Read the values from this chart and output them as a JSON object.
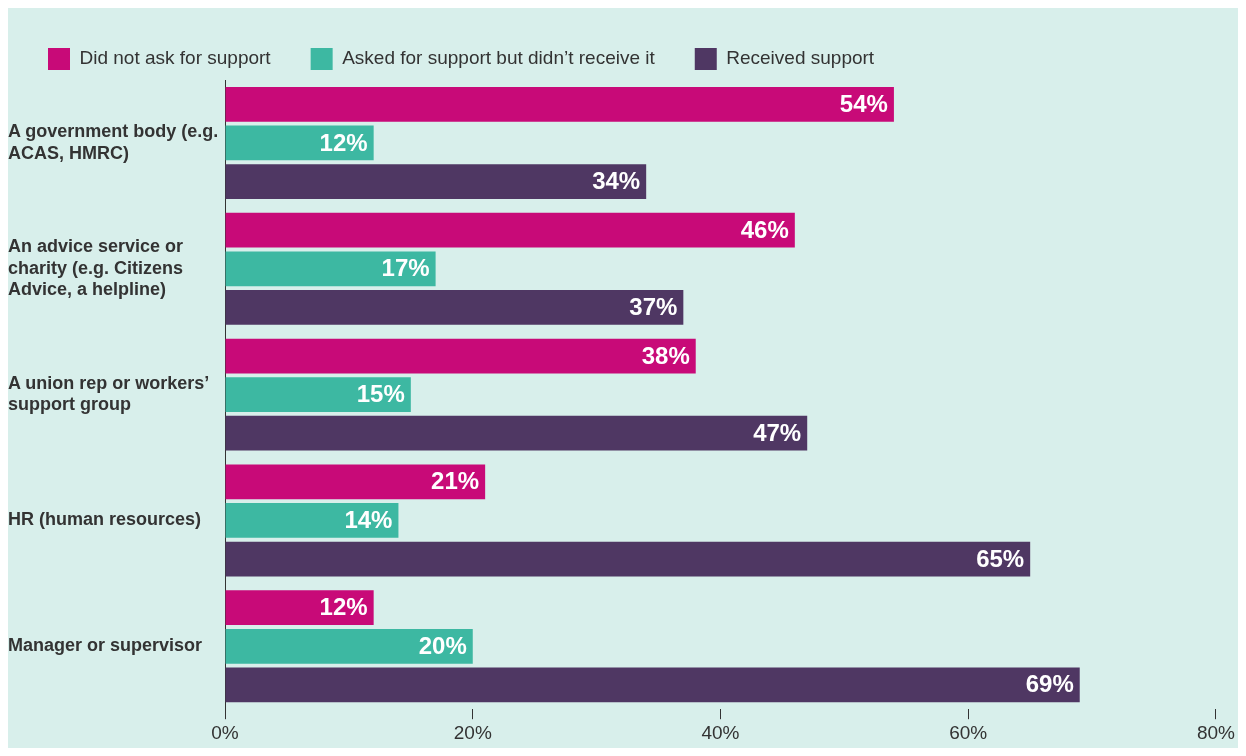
{
  "chart_data": {
    "type": "bar",
    "orientation": "horizontal",
    "legend": "top left",
    "grid": false,
    "categories": [
      "A government body (e.g. ACAS, HMRC)",
      "An advice service or charity (e.g. Citizens Advice, a helpline)",
      "A union rep or workers’ support group",
      "HR (human resources)",
      "Manager or supervisor"
    ],
    "series": [
      {
        "name": "Did not ask for support",
        "color": "#c80a78",
        "values": [
          54,
          46,
          38,
          21,
          12
        ],
        "value_labels": [
          "54%",
          "46%",
          "38%",
          "21%",
          "12%"
        ]
      },
      {
        "name": "Asked for support but didn’t receive it",
        "color": "#3db8a2",
        "values": [
          12,
          17,
          15,
          14,
          20
        ],
        "value_labels": [
          "12%",
          "17%",
          "15%",
          "14%",
          "20%"
        ]
      },
      {
        "name": "Received support",
        "color": "#4f3763",
        "values": [
          34,
          37,
          47,
          65,
          69
        ],
        "value_labels": [
          "34%",
          "37%",
          "47%",
          "65%",
          "69%"
        ]
      }
    ],
    "xlim": [
      0,
      80
    ],
    "xticks": [
      {
        "value": 0,
        "label": "0%"
      },
      {
        "value": 20,
        "label": "20%"
      },
      {
        "value": 40,
        "label": "40%"
      },
      {
        "value": 60,
        "label": "60%"
      },
      {
        "value": 80,
        "label": "80%"
      }
    ]
  }
}
